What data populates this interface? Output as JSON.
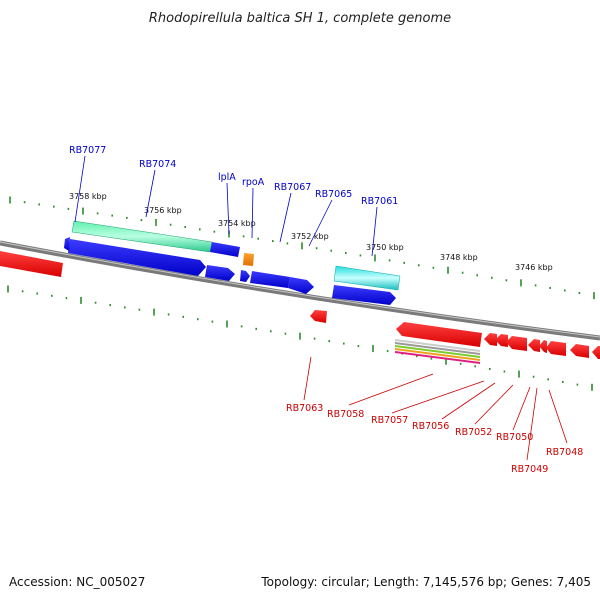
{
  "title": "Rhodopirellula baltica SH 1, complete genome",
  "accession": "Accession: NC_005027",
  "summary": "Topology: circular; Length: 7,145,576 bp; Genes: 7,405",
  "colors": {
    "forward_label": "#0000cc",
    "reverse_label": "#cc0000",
    "tick": "#2e8b2e",
    "backbone": "#7a7a7a"
  },
  "scale_labels": [
    "3758 kbp",
    "3756 kbp",
    "3754 kbp",
    "3752 kbp",
    "3750 kbp",
    "3748 kbp",
    "3746 kbp"
  ],
  "forward_genes": [
    "RB7077",
    "RB7074",
    "lplA",
    "rpoA",
    "RB7067",
    "RB7065",
    "RB7061"
  ],
  "reverse_genes": [
    "RB7063",
    "RB7058",
    "RB7057",
    "RB7056",
    "RB7052",
    "RB7050",
    "RB7049",
    "RB7048"
  ]
}
